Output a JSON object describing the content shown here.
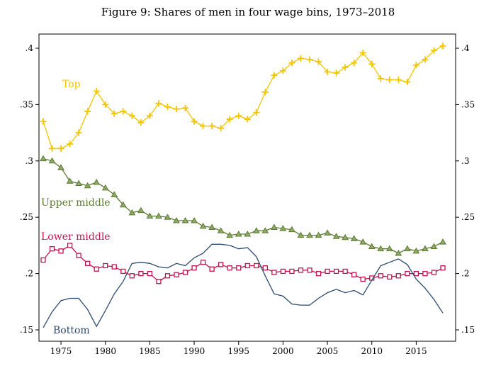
{
  "figure": {
    "title": "Figure 9: Shares of men in four wage bins, 1973–2018"
  },
  "chart_data": {
    "type": "line",
    "title": "Figure 9: Shares of men in four wage bins, 1973–2018",
    "xlabel": "",
    "ylabel": "",
    "xlim": [
      1973,
      2018
    ],
    "ylim": [
      0.15,
      0.4
    ],
    "x_ticks": [
      1975,
      1980,
      1985,
      1990,
      1995,
      2000,
      2005,
      2010,
      2015
    ],
    "x_tick_labels": [
      "1975",
      "1980",
      "1985",
      "1990",
      "1995",
      "2000",
      "2005",
      "2010",
      "2015"
    ],
    "y_ticks": [
      0.15,
      0.2,
      0.25,
      0.3,
      0.35,
      0.4
    ],
    "y_tick_labels": [
      ".15",
      ".2",
      ".25",
      ".3",
      ".35",
      ".4"
    ],
    "grid": false,
    "legend": "inline labels",
    "x": [
      1973,
      1974,
      1975,
      1976,
      1977,
      1978,
      1979,
      1980,
      1981,
      1982,
      1983,
      1984,
      1985,
      1986,
      1987,
      1988,
      1989,
      1990,
      1991,
      1992,
      1993,
      1994,
      1995,
      1996,
      1997,
      1998,
      1999,
      2000,
      2001,
      2002,
      2003,
      2004,
      2005,
      2006,
      2007,
      2008,
      2009,
      2010,
      2011,
      2012,
      2013,
      2014,
      2015,
      2016,
      2017,
      2018
    ],
    "series": [
      {
        "name": "Top",
        "color": "#f2c500",
        "marker": "plus",
        "values": [
          0.335,
          0.311,
          0.311,
          0.315,
          0.325,
          0.344,
          0.362,
          0.35,
          0.342,
          0.344,
          0.34,
          0.334,
          0.34,
          0.351,
          0.348,
          0.346,
          0.347,
          0.335,
          0.331,
          0.331,
          0.329,
          0.337,
          0.34,
          0.337,
          0.343,
          0.361,
          0.376,
          0.38,
          0.387,
          0.391,
          0.39,
          0.388,
          0.379,
          0.378,
          0.383,
          0.387,
          0.396,
          0.386,
          0.373,
          0.372,
          0.372,
          0.37,
          0.385,
          0.39,
          0.398,
          0.402
        ]
      },
      {
        "name": "Upper middle",
        "color": "#5b7a2e",
        "marker": "triangle",
        "values": [
          0.302,
          0.3,
          0.294,
          0.282,
          0.28,
          0.278,
          0.281,
          0.276,
          0.27,
          0.261,
          0.254,
          0.256,
          0.251,
          0.251,
          0.25,
          0.247,
          0.247,
          0.247,
          0.242,
          0.241,
          0.238,
          0.234,
          0.235,
          0.235,
          0.238,
          0.238,
          0.241,
          0.24,
          0.239,
          0.234,
          0.234,
          0.234,
          0.236,
          0.233,
          0.232,
          0.231,
          0.228,
          0.224,
          0.222,
          0.222,
          0.218,
          0.222,
          0.22,
          0.222,
          0.224,
          0.228
        ]
      },
      {
        "name": "Lower middle",
        "color": "#c0144c",
        "marker": "square",
        "values": [
          0.212,
          0.222,
          0.22,
          0.225,
          0.216,
          0.209,
          0.204,
          0.207,
          0.206,
          0.202,
          0.198,
          0.2,
          0.2,
          0.193,
          0.198,
          0.199,
          0.201,
          0.205,
          0.21,
          0.204,
          0.208,
          0.205,
          0.205,
          0.207,
          0.207,
          0.205,
          0.201,
          0.202,
          0.202,
          0.203,
          0.203,
          0.2,
          0.202,
          0.202,
          0.202,
          0.199,
          0.195,
          0.196,
          0.198,
          0.197,
          0.198,
          0.2,
          0.2,
          0.2,
          0.201,
          0.205
        ]
      },
      {
        "name": "Bottom",
        "color": "#2c4a6e",
        "marker": "none",
        "values": [
          0.152,
          0.166,
          0.176,
          0.178,
          0.178,
          0.168,
          0.153,
          0.167,
          0.182,
          0.193,
          0.209,
          0.21,
          0.209,
          0.206,
          0.205,
          0.209,
          0.207,
          0.214,
          0.218,
          0.226,
          0.226,
          0.225,
          0.222,
          0.223,
          0.215,
          0.198,
          0.182,
          0.18,
          0.173,
          0.172,
          0.172,
          0.178,
          0.183,
          0.186,
          0.183,
          0.185,
          0.181,
          0.194,
          0.207,
          0.21,
          0.213,
          0.208,
          0.195,
          0.187,
          0.177,
          0.165
        ]
      }
    ]
  }
}
